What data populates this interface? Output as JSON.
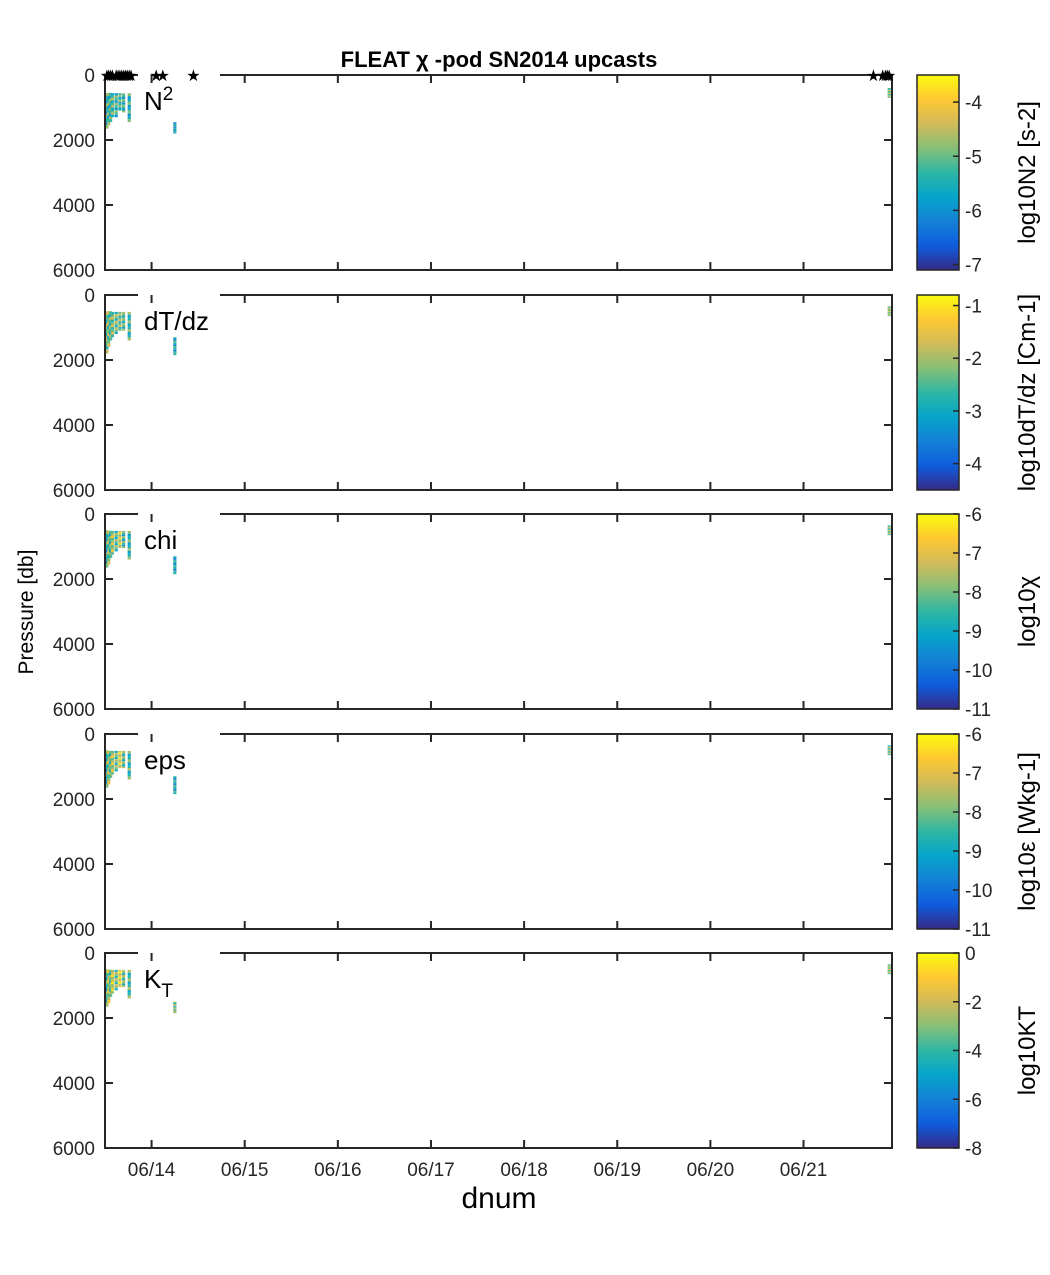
{
  "chart_data": {
    "type": "heatmap",
    "title": "FLEAT χ -pod SN2014 upcasts",
    "xlabel": "dnum",
    "ylabel": "Pressure [db]",
    "x_tick_labels": [
      "06/14",
      "06/15",
      "06/16",
      "06/17",
      "06/18",
      "06/19",
      "06/20",
      "06/21"
    ],
    "x_tick_days": [
      14,
      15,
      16,
      17,
      18,
      19,
      20,
      21
    ],
    "xlim_days": [
      13.5,
      21.95
    ],
    "y_ticks": [
      0,
      2000,
      4000,
      6000
    ],
    "ylim": [
      0,
      6000
    ],
    "y_reversed": true,
    "colormap": [
      "#352a87",
      "#0f5cdd",
      "#1481d6",
      "#06a4ca",
      "#2eb7a4",
      "#87bf77",
      "#d1bb59",
      "#fec832",
      "#f9fb0e"
    ],
    "cast_markers_days": [
      13.52,
      13.54,
      13.56,
      13.58,
      13.62,
      13.64,
      13.66,
      13.68,
      13.7,
      13.72,
      13.74,
      13.76,
      13.78,
      14.05,
      14.12,
      14.45,
      21.75,
      21.85,
      21.88,
      21.9,
      21.92
    ],
    "panels": [
      {
        "name": "N2",
        "label": "N",
        "label_sup": "2",
        "label_sub": "",
        "cbar_ticks": [
          "-4",
          "-5",
          "-6",
          "-7"
        ],
        "cbar_tick_values": [
          -4,
          -5,
          -6,
          -7
        ],
        "clim": [
          -7.1,
          -3.5
        ],
        "cbar_label": "log10N2 [s-2]",
        "casts": [
          {
            "day": 13.52,
            "ptop": 550,
            "pbot": 1650,
            "level": 0.48
          },
          {
            "day": 13.54,
            "ptop": 550,
            "pbot": 1550,
            "level": 0.52
          },
          {
            "day": 13.56,
            "ptop": 550,
            "pbot": 1450,
            "level": 0.5
          },
          {
            "day": 13.58,
            "ptop": 560,
            "pbot": 1300,
            "level": 0.55
          },
          {
            "day": 13.62,
            "ptop": 560,
            "pbot": 1300,
            "level": 0.5
          },
          {
            "day": 13.66,
            "ptop": 560,
            "pbot": 1100,
            "level": 0.52
          },
          {
            "day": 13.7,
            "ptop": 560,
            "pbot": 1150,
            "level": 0.48
          },
          {
            "day": 13.76,
            "ptop": 560,
            "pbot": 1450,
            "level": 0.45
          },
          {
            "day": 14.25,
            "ptop": 1450,
            "pbot": 1800,
            "level": 0.38
          },
          {
            "day": 21.92,
            "ptop": 400,
            "pbot": 700,
            "level": 0.62
          }
        ]
      },
      {
        "name": "dTdz",
        "label": "dT/dz",
        "label_sup": "",
        "label_sub": "",
        "cbar_ticks": [
          "-1",
          "-2",
          "-3",
          "-4"
        ],
        "cbar_tick_values": [
          -1,
          -2,
          -3,
          -4
        ],
        "clim": [
          -4.5,
          -0.8
        ],
        "cbar_label": "log10dT/dz [Cm-1]",
        "casts": [
          {
            "day": 13.52,
            "ptop": 500,
            "pbot": 1800,
            "level": 0.58
          },
          {
            "day": 13.54,
            "ptop": 500,
            "pbot": 1600,
            "level": 0.6
          },
          {
            "day": 13.56,
            "ptop": 500,
            "pbot": 1400,
            "level": 0.55
          },
          {
            "day": 13.58,
            "ptop": 520,
            "pbot": 1300,
            "level": 0.62
          },
          {
            "day": 13.62,
            "ptop": 520,
            "pbot": 1200,
            "level": 0.58
          },
          {
            "day": 13.66,
            "ptop": 520,
            "pbot": 1100,
            "level": 0.6
          },
          {
            "day": 13.7,
            "ptop": 520,
            "pbot": 1100,
            "level": 0.55
          },
          {
            "day": 13.76,
            "ptop": 520,
            "pbot": 1400,
            "level": 0.5
          },
          {
            "day": 14.25,
            "ptop": 1300,
            "pbot": 1850,
            "level": 0.42
          },
          {
            "day": 21.92,
            "ptop": 350,
            "pbot": 650,
            "level": 0.66
          }
        ]
      },
      {
        "name": "chi",
        "label": "chi",
        "label_sup": "",
        "label_sub": "",
        "cbar_ticks": [
          "-6",
          "-7",
          "-8",
          "-9",
          "-10",
          "-11"
        ],
        "cbar_tick_values": [
          -6,
          -7,
          -8,
          -9,
          -10,
          -11
        ],
        "clim": [
          -11,
          -6
        ],
        "cbar_label": "log10χ",
        "casts": [
          {
            "day": 13.52,
            "ptop": 500,
            "pbot": 1650,
            "level": 0.45
          },
          {
            "day": 13.54,
            "ptop": 520,
            "pbot": 1550,
            "level": 0.6
          },
          {
            "day": 13.56,
            "ptop": 520,
            "pbot": 1350,
            "level": 0.52
          },
          {
            "day": 13.58,
            "ptop": 520,
            "pbot": 1250,
            "level": 0.7
          },
          {
            "day": 13.62,
            "ptop": 520,
            "pbot": 1150,
            "level": 0.55
          },
          {
            "day": 13.66,
            "ptop": 520,
            "pbot": 1050,
            "level": 0.75
          },
          {
            "day": 13.7,
            "ptop": 520,
            "pbot": 1050,
            "level": 0.5
          },
          {
            "day": 13.76,
            "ptop": 520,
            "pbot": 1400,
            "level": 0.48
          },
          {
            "day": 14.25,
            "ptop": 1300,
            "pbot": 1850,
            "level": 0.4
          },
          {
            "day": 21.92,
            "ptop": 350,
            "pbot": 650,
            "level": 0.62
          }
        ]
      },
      {
        "name": "eps",
        "label": "eps",
        "label_sup": "",
        "label_sub": "",
        "cbar_ticks": [
          "-6",
          "-7",
          "-8",
          "-9",
          "-10",
          "-11"
        ],
        "cbar_tick_values": [
          -6,
          -7,
          -8,
          -9,
          -10,
          -11
        ],
        "clim": [
          -11,
          -6
        ],
        "cbar_label": "log10ε [Wkg-1]",
        "casts": [
          {
            "day": 13.52,
            "ptop": 500,
            "pbot": 1650,
            "level": 0.45
          },
          {
            "day": 13.54,
            "ptop": 520,
            "pbot": 1550,
            "level": 0.65
          },
          {
            "day": 13.56,
            "ptop": 520,
            "pbot": 1350,
            "level": 0.55
          },
          {
            "day": 13.58,
            "ptop": 520,
            "pbot": 1250,
            "level": 0.72
          },
          {
            "day": 13.62,
            "ptop": 520,
            "pbot": 1150,
            "level": 0.58
          },
          {
            "day": 13.66,
            "ptop": 520,
            "pbot": 1050,
            "level": 0.78
          },
          {
            "day": 13.7,
            "ptop": 520,
            "pbot": 1050,
            "level": 0.55
          },
          {
            "day": 13.76,
            "ptop": 520,
            "pbot": 1400,
            "level": 0.5
          },
          {
            "day": 14.25,
            "ptop": 1300,
            "pbot": 1850,
            "level": 0.42
          },
          {
            "day": 21.92,
            "ptop": 350,
            "pbot": 650,
            "level": 0.6
          }
        ]
      },
      {
        "name": "KT",
        "label": "K",
        "label_sup": "",
        "label_sub": "T",
        "cbar_ticks": [
          "0",
          "-2",
          "-4",
          "-6",
          "-8"
        ],
        "cbar_tick_values": [
          0,
          -2,
          -4,
          -6,
          -8
        ],
        "clim": [
          -8,
          0
        ],
        "cbar_label": "log10KT",
        "casts": [
          {
            "day": 13.52,
            "ptop": 500,
            "pbot": 1650,
            "level": 0.5
          },
          {
            "day": 13.54,
            "ptop": 520,
            "pbot": 1550,
            "level": 0.7
          },
          {
            "day": 13.56,
            "ptop": 520,
            "pbot": 1350,
            "level": 0.55
          },
          {
            "day": 13.58,
            "ptop": 520,
            "pbot": 1250,
            "level": 0.78
          },
          {
            "day": 13.62,
            "ptop": 520,
            "pbot": 1150,
            "level": 0.6
          },
          {
            "day": 13.66,
            "ptop": 520,
            "pbot": 1050,
            "level": 0.82
          },
          {
            "day": 13.7,
            "ptop": 520,
            "pbot": 1050,
            "level": 0.58
          },
          {
            "day": 13.76,
            "ptop": 520,
            "pbot": 1400,
            "level": 0.52
          },
          {
            "day": 14.25,
            "ptop": 1500,
            "pbot": 1850,
            "level": 0.6
          },
          {
            "day": 21.92,
            "ptop": 350,
            "pbot": 650,
            "level": 0.65
          }
        ]
      }
    ]
  }
}
